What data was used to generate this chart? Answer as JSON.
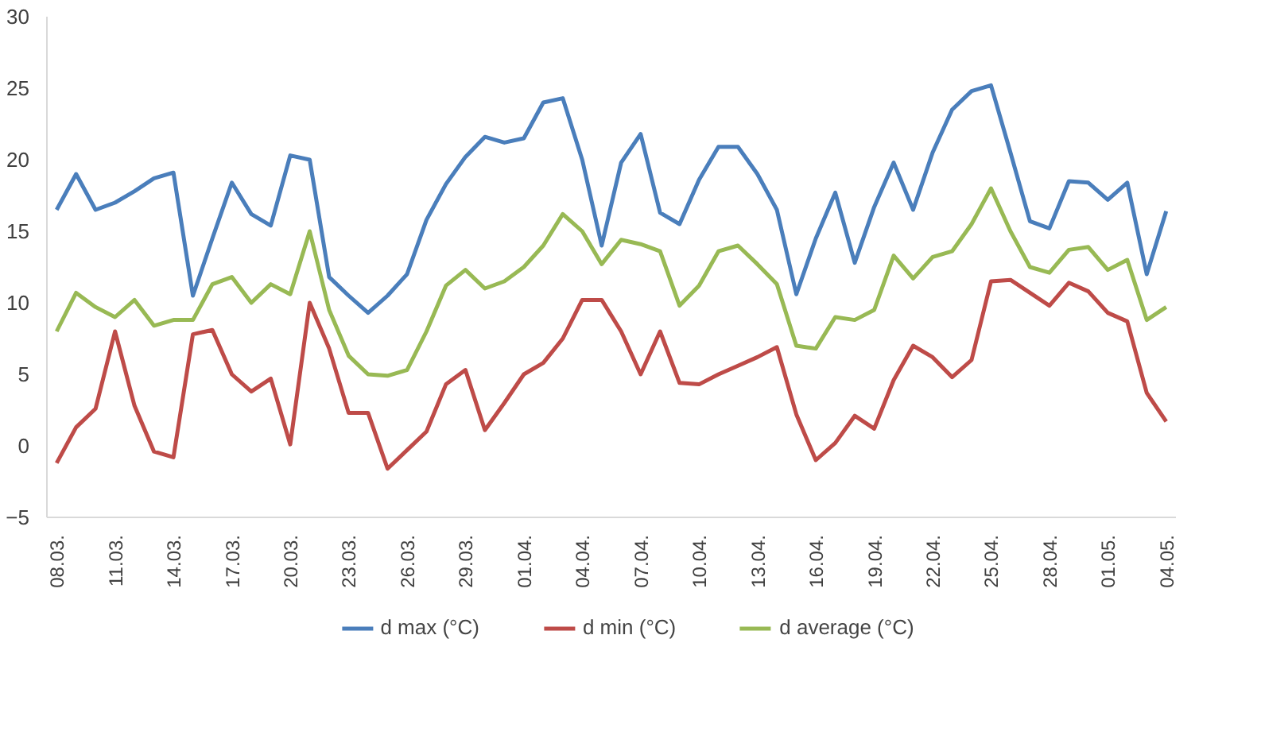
{
  "chart_data": {
    "type": "line",
    "categories": [
      "08.03.",
      null,
      null,
      "11.03.",
      null,
      null,
      "14.03.",
      null,
      null,
      "17.03.",
      null,
      null,
      "20.03.",
      null,
      null,
      "23.03.",
      null,
      null,
      "26.03.",
      null,
      null,
      "29.03.",
      null,
      null,
      "01.04.",
      null,
      null,
      "04.04.",
      null,
      null,
      "07.04.",
      null,
      null,
      "10.04.",
      null,
      null,
      "13.04.",
      null,
      null,
      "16.04.",
      null,
      null,
      "19.04.",
      null,
      null,
      "22.04.",
      null,
      null,
      "25.04.",
      null,
      null,
      "28.04.",
      null,
      null,
      "01.05.",
      null,
      null,
      "04.05."
    ],
    "series": [
      {
        "name": "d max (°C)",
        "color": "#4a7ebb",
        "values": [
          16.5,
          19,
          16.5,
          17,
          17.8,
          18.7,
          19.1,
          10.5,
          14.5,
          18.4,
          16.2,
          15.4,
          20.3,
          20,
          11.8,
          10.5,
          9.3,
          10.5,
          12,
          15.8,
          18.3,
          20.2,
          21.6,
          21.2,
          21.5,
          24,
          24.3,
          20,
          14,
          19.8,
          21.8,
          16.3,
          15.5,
          18.6,
          20.9,
          20.9,
          19,
          16.5,
          10.6,
          14.5,
          17.7,
          12.8,
          16.7,
          19.8,
          16.5,
          20.5,
          23.5,
          24.8,
          25.2,
          20.5,
          15.7,
          15.2,
          18.5,
          18.4,
          17.2,
          18.4,
          12,
          16.4
        ]
      },
      {
        "name": "d min (°C)",
        "color": "#be4b48",
        "values": [
          -1.2,
          1.3,
          2.6,
          8,
          2.8,
          -0.4,
          -0.8,
          7.8,
          8.1,
          5,
          3.8,
          4.7,
          0.1,
          10,
          6.8,
          2.3,
          2.3,
          -1.6,
          -0.3,
          1,
          4.3,
          5.3,
          1.1,
          3,
          5,
          5.8,
          7.5,
          10.2,
          10.2,
          8,
          5,
          8,
          4.4,
          4.3,
          5,
          5.6,
          6.2,
          6.9,
          2.2,
          -1,
          0.2,
          2.1,
          1.2,
          4.6,
          7,
          6.2,
          4.8,
          6,
          11.5,
          11.6,
          10.7,
          9.8,
          11.4,
          10.8,
          9.3,
          8.7,
          3.7,
          1.7
        ]
      },
      {
        "name": "d average (°C)",
        "color": "#98b954",
        "values": [
          8,
          10.7,
          9.7,
          9,
          10.2,
          8.4,
          8.8,
          8.8,
          11.3,
          11.8,
          10,
          11.3,
          10.6,
          15,
          9.5,
          6.3,
          5,
          4.9,
          5.3,
          8,
          11.2,
          12.3,
          11,
          11.5,
          12.5,
          14,
          16.2,
          15,
          12.7,
          14.4,
          14.1,
          13.6,
          9.8,
          11.2,
          13.6,
          14,
          12.7,
          11.3,
          7,
          6.8,
          9,
          8.8,
          9.5,
          13.3,
          11.7,
          13.2,
          13.6,
          15.5,
          18,
          15,
          12.5,
          12.1,
          13.7,
          13.9,
          12.3,
          13,
          8.8,
          9.7
        ]
      }
    ],
    "ylim": [
      -5,
      30
    ],
    "yticks": [
      -5,
      0,
      5,
      10,
      15,
      20,
      25,
      30
    ],
    "legend": "bottom",
    "marker": "none",
    "line_style": "solid"
  }
}
